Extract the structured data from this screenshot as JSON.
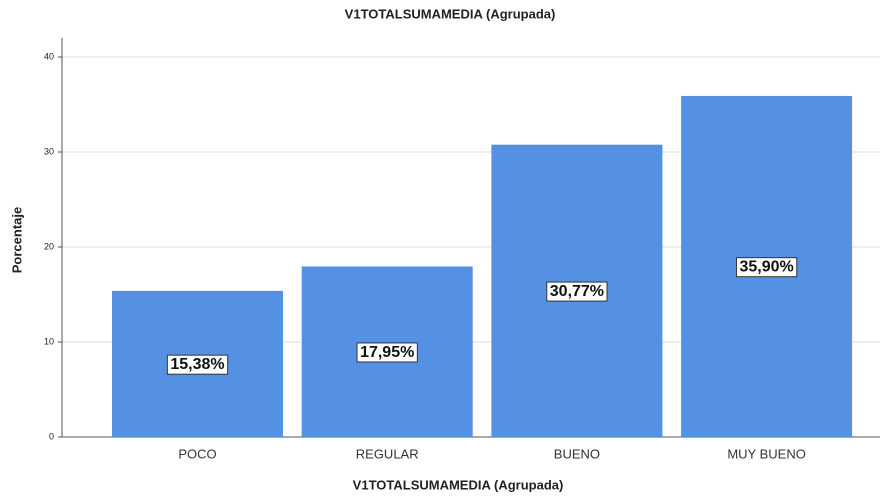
{
  "chart_data": {
    "type": "bar",
    "title": "V1TOTALSUMAMEDIA (Agrupada)",
    "x_label": "V1TOTALSUMAMEDIA (Agrupada)",
    "y_label": "Porcentaje",
    "categories": [
      "POCO",
      "REGULAR",
      "BUENO",
      "MUY BUENO"
    ],
    "values": [
      15.38,
      17.95,
      30.77,
      35.9
    ],
    "value_labels": [
      "15,38%",
      "17,95%",
      "30,77%",
      "35,90%"
    ],
    "color": "#5591e2",
    "ylim": [
      0,
      42
    ],
    "yticks": [
      0,
      10,
      20,
      30,
      40
    ],
    "grid": true
  }
}
